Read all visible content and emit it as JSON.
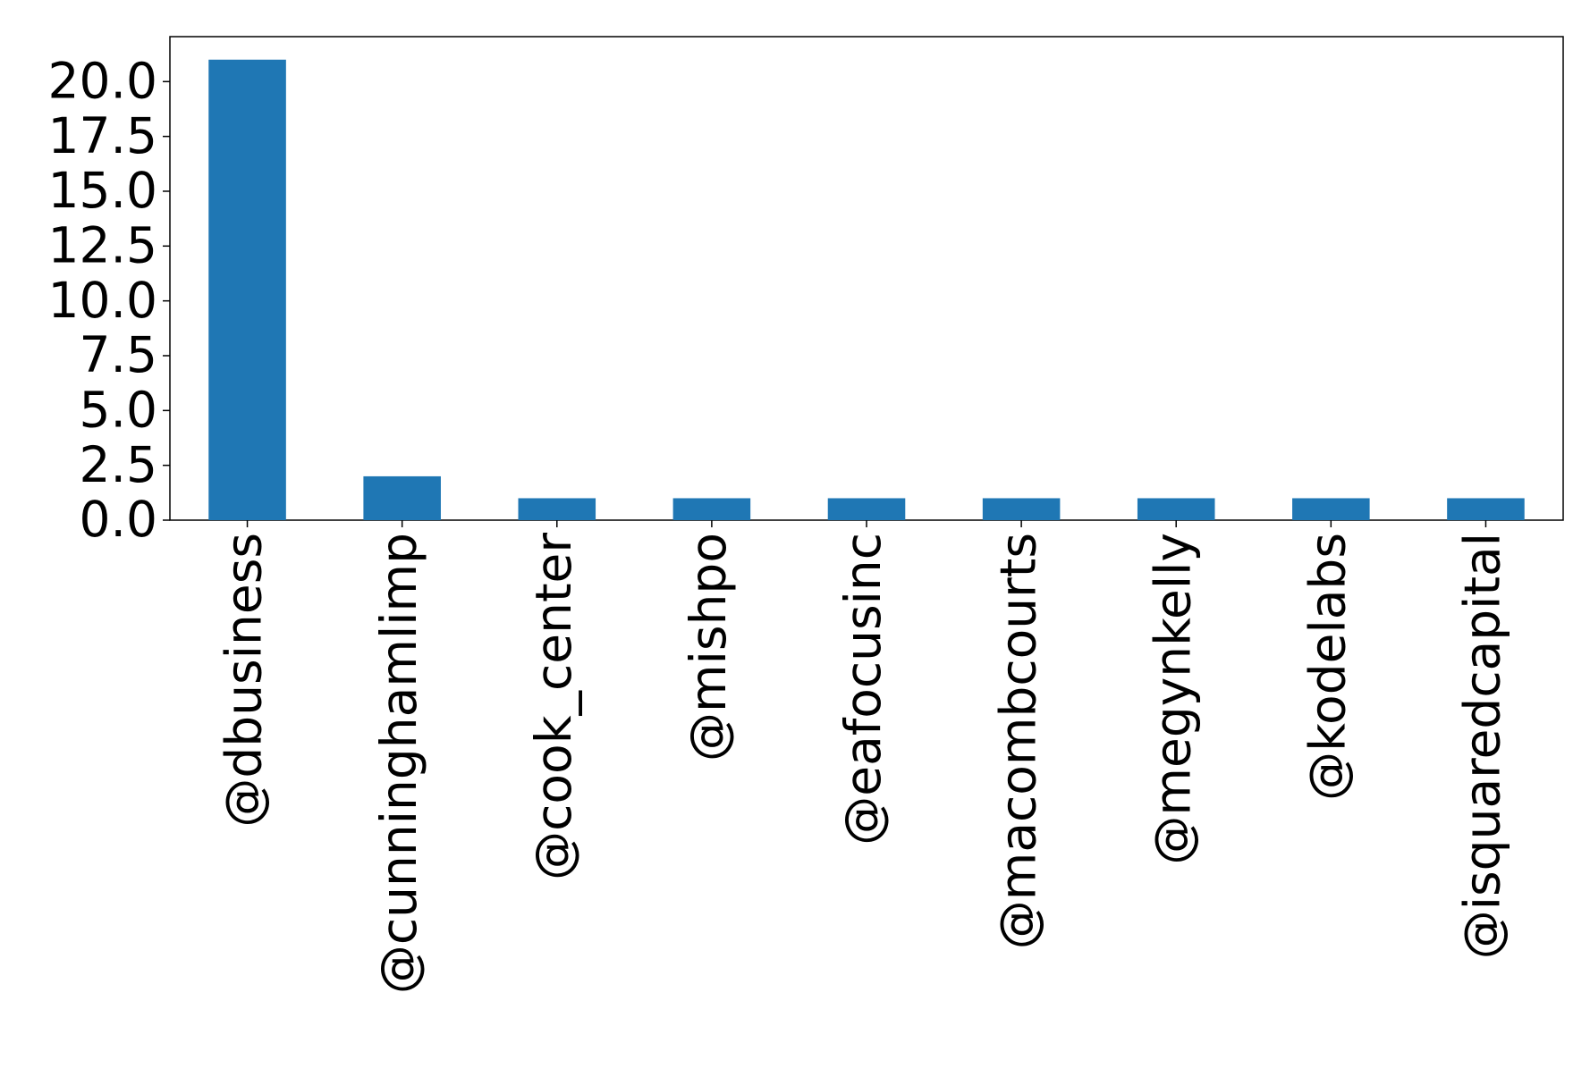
{
  "chart_data": {
    "type": "bar",
    "categories": [
      "@dbusiness",
      "@cunninghamlimp",
      "@cook_center",
      "@mishpo",
      "@eafocusinc",
      "@macombcourts",
      "@megynkelly",
      "@kodelabs",
      "@isquaredcapital"
    ],
    "values": [
      21,
      2,
      1,
      1,
      1,
      1,
      1,
      1,
      1
    ],
    "color": "#1f77b4",
    "ylim": [
      0,
      22.05
    ],
    "yticks": [
      {
        "value": 0,
        "label": "0.0"
      },
      2.5,
      {
        "value": 5,
        "label": "5.0"
      },
      7.5,
      {
        "value": 10,
        "label": "10.0"
      },
      12.5,
      {
        "value": 15,
        "label": "15.0"
      },
      17.5,
      {
        "value": 20,
        "label": "20.0"
      }
    ],
    "grid": false
  }
}
